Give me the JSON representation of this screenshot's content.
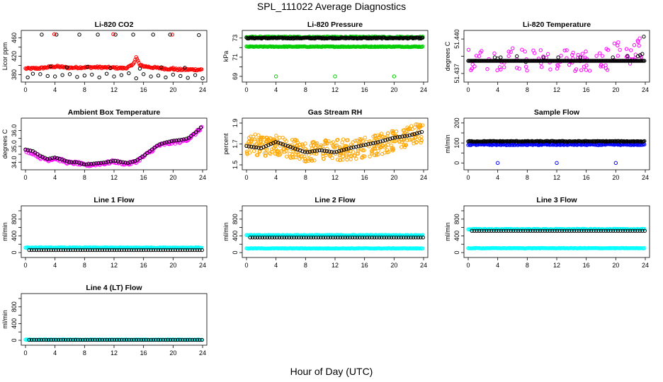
{
  "page": {
    "title": "SPL_111022  Average Diagnostics",
    "xlabel": "Hour of Day (UTC)"
  },
  "colors": {
    "black": "#000000",
    "red": "#ff0000",
    "green": "#00cc00",
    "magenta": "#ff00ff",
    "orange": "#ffa500",
    "blue": "#0000ff",
    "cyan": "#00ffff"
  },
  "chart_data": [
    {
      "type": "scatter",
      "title": "Li-820 CO2",
      "ylabel": "Licor ppm",
      "xlim": [
        0,
        24
      ],
      "ylim": [
        370,
        470
      ],
      "xticks": [
        "0",
        "4",
        "8",
        "12",
        "16",
        "20",
        "24"
      ],
      "yticks": [
        380,
        400,
        420,
        440,
        460
      ],
      "ytick_labels": [
        "380",
        "",
        "420",
        "",
        "460"
      ],
      "series": [
        {
          "color": "red",
          "kind": "dense",
          "y": [
            [
              0,
              393
            ],
            [
              2,
              394
            ],
            [
              4,
              398
            ],
            [
              6,
              395
            ],
            [
              8,
              396
            ],
            [
              10,
              396
            ],
            [
              12,
              395
            ],
            [
              13.5,
              394
            ],
            [
              14.5,
              400
            ],
            [
              15,
              418
            ],
            [
              15.5,
              400
            ],
            [
              17,
              396
            ],
            [
              19,
              393
            ],
            [
              21,
              391
            ],
            [
              23,
              391
            ],
            [
              24,
              391
            ]
          ],
          "spread": 2
        },
        {
          "color": "black",
          "kind": "points",
          "x": [
            0.3,
            1,
            2,
            3,
            4,
            5,
            6,
            7,
            8,
            9,
            10,
            11,
            12,
            13,
            14,
            15,
            16,
            17,
            18,
            19,
            20,
            21,
            22,
            23,
            24,
            2.2,
            4.2,
            7.3,
            9.8,
            12.2,
            14.6,
            17.3,
            19.6,
            23.5,
            3.4,
            5.6,
            8.4,
            11.5,
            15.5,
            18.4,
            21.6
          ],
          "y": [
            374,
            382,
            381,
            377,
            376,
            379,
            381,
            375,
            378,
            380,
            374,
            382,
            376,
            379,
            383,
            372,
            381,
            376,
            378,
            374,
            380,
            377,
            373,
            379,
            372,
            467,
            467,
            467,
            467,
            467,
            467,
            467,
            467,
            466,
            398,
            396,
            397,
            394,
            393,
            396,
            395
          ]
        },
        {
          "color": "red",
          "kind": "points",
          "x": [
            3.9,
            11.9,
            19.9,
            4,
            12,
            20
          ],
          "y": [
            468,
            468,
            467,
            396,
            396,
            395
          ]
        }
      ]
    },
    {
      "type": "scatter",
      "title": "Li-820 Pressure",
      "ylabel": "kPa",
      "xlim": [
        0,
        24
      ],
      "ylim": [
        68.7,
        73.5
      ],
      "xticks": [
        "0",
        "4",
        "8",
        "12",
        "16",
        "20",
        "24"
      ],
      "yticks": [
        69,
        70,
        71,
        72,
        73
      ],
      "ytick_labels": [
        "69",
        "",
        "71",
        "",
        "73"
      ],
      "series": [
        {
          "color": "green",
          "kind": "dense",
          "y": [
            [
              0,
              73.1
            ],
            [
              24,
              73.1
            ]
          ],
          "spread": 0.06
        },
        {
          "color": "black",
          "kind": "dense",
          "y": [
            [
              0,
              73.0
            ],
            [
              24,
              73.0
            ]
          ],
          "spread": 0.06
        },
        {
          "color": "green",
          "kind": "dense",
          "y": [
            [
              0,
              72.1
            ],
            [
              24,
              72.1
            ]
          ],
          "spread": 0.04
        },
        {
          "color": "green",
          "kind": "points",
          "x": [
            4,
            12,
            20
          ],
          "y": [
            69,
            69,
            69
          ]
        }
      ]
    },
    {
      "type": "scatter",
      "title": "Li-820 Temperature",
      "ylabel": "degrees C",
      "xlim": [
        0,
        24
      ],
      "ylim": [
        51.4365,
        51.4405
      ],
      "xticks": [
        "0",
        "4",
        "8",
        "12",
        "16",
        "20",
        "24"
      ],
      "yticks": [
        51.437,
        51.4385,
        51.44
      ],
      "ytick_labels": [
        "51.437",
        "",
        "51.440"
      ],
      "series": [
        {
          "color": "magenta",
          "kind": "scatter",
          "band": [
            51.4372,
            51.4392
          ],
          "n": 110
        },
        {
          "color": "black",
          "kind": "dense",
          "y": [
            [
              0,
              51.4381
            ],
            [
              24,
              51.4381
            ]
          ],
          "spread": 0
        },
        {
          "color": "black",
          "kind": "points",
          "x": [
            3.6,
            4,
            4.4,
            6.6,
            7.8,
            10.2,
            12.2,
            15.2,
            19.6,
            21.6,
            23,
            23.3,
            23.6,
            23.8
          ],
          "y": [
            51.4384,
            51.4383,
            51.4384,
            51.4385,
            51.438,
            51.4384,
            51.4384,
            51.4384,
            51.4384,
            51.4385,
            51.4385,
            51.4386,
            51.4387,
            51.4402
          ]
        }
      ]
    },
    {
      "type": "scatter",
      "title": "Ambient Box Temperature",
      "ylabel": "degrees C",
      "xlim": [
        0,
        24
      ],
      "ylim": [
        33.7,
        36.6
      ],
      "xticks": [
        "0",
        "4",
        "8",
        "12",
        "16",
        "20",
        "24"
      ],
      "yticks": [
        34.0,
        34.5,
        35.0,
        35.5,
        36.0
      ],
      "ytick_labels": [
        "34.0",
        "",
        "35.0",
        "",
        "36.0"
      ],
      "series": [
        {
          "color": "magenta",
          "kind": "dense",
          "y": [
            [
              0,
              34.7
            ],
            [
              1,
              34.6
            ],
            [
              2,
              34.3
            ],
            [
              3,
              34.15
            ],
            [
              4,
              34.25
            ],
            [
              5,
              34.1
            ],
            [
              6,
              33.95
            ],
            [
              7,
              33.95
            ],
            [
              8,
              33.8
            ],
            [
              9,
              33.85
            ],
            [
              10,
              33.9
            ],
            [
              11,
              33.95
            ],
            [
              12,
              34.05
            ],
            [
              13,
              33.95
            ],
            [
              14,
              33.9
            ],
            [
              15,
              34.05
            ],
            [
              16,
              34.35
            ],
            [
              17,
              34.7
            ],
            [
              18,
              35.05
            ],
            [
              19,
              35.15
            ],
            [
              20,
              35.25
            ],
            [
              21,
              35.3
            ],
            [
              22,
              35.45
            ],
            [
              23,
              35.8
            ],
            [
              24,
              36.25
            ]
          ],
          "spread": 0.1
        },
        {
          "color": "black",
          "kind": "trend",
          "y": [
            [
              0,
              34.8
            ],
            [
              1,
              34.7
            ],
            [
              2,
              34.4
            ],
            [
              3,
              34.2
            ],
            [
              4,
              34.3
            ],
            [
              5,
              34.15
            ],
            [
              6,
              34.0
            ],
            [
              7,
              34.0
            ],
            [
              8,
              33.85
            ],
            [
              9,
              33.9
            ],
            [
              10,
              33.95
            ],
            [
              11,
              34.0
            ],
            [
              12,
              34.1
            ],
            [
              13,
              34.0
            ],
            [
              14,
              33.95
            ],
            [
              15,
              34.1
            ],
            [
              16,
              34.4
            ],
            [
              17,
              34.75
            ],
            [
              18,
              35.1
            ],
            [
              19,
              35.25
            ],
            [
              20,
              35.35
            ],
            [
              21,
              35.4
            ],
            [
              22,
              35.5
            ],
            [
              23,
              35.85
            ],
            [
              24,
              36.3
            ]
          ]
        }
      ]
    },
    {
      "type": "scatter",
      "title": "Gas Stream RH",
      "ylabel": "percent",
      "xlim": [
        0,
        24
      ],
      "ylim": [
        1.48,
        1.92
      ],
      "xticks": [
        "0",
        "4",
        "8",
        "12",
        "16",
        "20",
        "24"
      ],
      "yticks": [
        1.5,
        1.6,
        1.7,
        1.8,
        1.9
      ],
      "ytick_labels": [
        "1.5",
        "",
        "1.7",
        "",
        "1.9"
      ],
      "series": [
        {
          "color": "orange",
          "kind": "cloud",
          "y": [
            [
              0,
              1.7
            ],
            [
              4,
              1.68
            ],
            [
              8,
              1.63
            ],
            [
              12,
              1.64
            ],
            [
              16,
              1.66
            ],
            [
              20,
              1.73
            ],
            [
              24,
              1.82
            ]
          ],
          "spread": 0.1,
          "n": 420
        },
        {
          "color": "black",
          "kind": "trend",
          "y": [
            [
              0,
              1.68
            ],
            [
              2,
              1.66
            ],
            [
              4,
              1.72
            ],
            [
              6,
              1.67
            ],
            [
              8,
              1.62
            ],
            [
              10,
              1.64
            ],
            [
              12,
              1.62
            ],
            [
              14,
              1.66
            ],
            [
              16,
              1.69
            ],
            [
              18,
              1.72
            ],
            [
              20,
              1.76
            ],
            [
              22,
              1.78
            ],
            [
              24,
              1.82
            ]
          ]
        }
      ]
    },
    {
      "type": "scatter",
      "title": "Sample Flow",
      "ylabel": "ml/min",
      "xlim": [
        0,
        24
      ],
      "ylim": [
        -20,
        210
      ],
      "xticks": [
        "0",
        "4",
        "8",
        "12",
        "16",
        "20",
        "24"
      ],
      "yticks": [
        0,
        50,
        100,
        150,
        200
      ],
      "ytick_labels": [
        "0",
        "",
        "100",
        "",
        "200"
      ],
      "series": [
        {
          "color": "blue",
          "kind": "dense",
          "y": [
            [
              0,
              92
            ],
            [
              24,
              92
            ]
          ],
          "spread": 3
        },
        {
          "color": "black",
          "kind": "dense",
          "y": [
            [
              0,
              108
            ],
            [
              24,
              108
            ]
          ],
          "spread": 2
        },
        {
          "color": "blue",
          "kind": "points",
          "x": [
            4,
            12,
            20
          ],
          "y": [
            0,
            0,
            0
          ]
        }
      ]
    },
    {
      "type": "scatter",
      "title": "Line 1 Flow",
      "ylabel": "ml/min",
      "xlim": [
        0,
        24
      ],
      "ylim": [
        -50,
        1050
      ],
      "xticks": [
        "0",
        "4",
        "8",
        "12",
        "16",
        "20",
        "24"
      ],
      "yticks": [
        0,
        200,
        400,
        600,
        800,
        1000
      ],
      "ytick_labels": [
        "0",
        "",
        "400",
        "",
        "800",
        ""
      ],
      "series": [
        {
          "color": "cyan",
          "kind": "dense",
          "y": [
            [
              0,
              118
            ],
            [
              24,
              118
            ]
          ],
          "spread": 8
        },
        {
          "color": "black",
          "kind": "trend",
          "y": [
            [
              0.5,
              60
            ],
            [
              24,
              60
            ]
          ]
        }
      ]
    },
    {
      "type": "scatter",
      "title": "Line 2 Flow",
      "ylabel": "ml/min",
      "xlim": [
        0,
        24
      ],
      "ylim": [
        -50,
        1050
      ],
      "xticks": [
        "0",
        "4",
        "8",
        "12",
        "16",
        "20",
        "24"
      ],
      "yticks": [
        0,
        200,
        400,
        600,
        800,
        1000
      ],
      "ytick_labels": [
        "0",
        "",
        "400",
        "",
        "800",
        ""
      ],
      "series": [
        {
          "color": "cyan",
          "kind": "dense",
          "y": [
            [
              0,
              415
            ],
            [
              24,
              415
            ]
          ],
          "spread": 8
        },
        {
          "color": "cyan",
          "kind": "dense",
          "y": [
            [
              0,
              100
            ],
            [
              24,
              100
            ]
          ],
          "spread": 6
        },
        {
          "color": "black",
          "kind": "trend",
          "y": [
            [
              0.5,
              360
            ],
            [
              24,
              360
            ]
          ]
        }
      ]
    },
    {
      "type": "scatter",
      "title": "Line 3 Flow",
      "ylabel": "ml/min",
      "xlim": [
        0,
        24
      ],
      "ylim": [
        -50,
        1050
      ],
      "xticks": [
        "0",
        "4",
        "8",
        "12",
        "16",
        "20",
        "24"
      ],
      "yticks": [
        0,
        200,
        400,
        600,
        800,
        1000
      ],
      "ytick_labels": [
        "0",
        "",
        "400",
        "",
        "800",
        ""
      ],
      "series": [
        {
          "color": "cyan",
          "kind": "dense",
          "y": [
            [
              0,
              560
            ],
            [
              24,
              560
            ]
          ],
          "spread": 8
        },
        {
          "color": "cyan",
          "kind": "dense",
          "y": [
            [
              0,
              105
            ],
            [
              24,
              105
            ]
          ],
          "spread": 6
        },
        {
          "color": "black",
          "kind": "trend",
          "y": [
            [
              0.5,
              520
            ],
            [
              24,
              520
            ]
          ]
        }
      ]
    },
    {
      "type": "scatter",
      "title": "Line 4 (LT) Flow",
      "ylabel": "ml/min",
      "xlim": [
        0,
        24
      ],
      "ylim": [
        -50,
        1050
      ],
      "xticks": [
        "0",
        "4",
        "8",
        "12",
        "16",
        "20",
        "24"
      ],
      "yticks": [
        0,
        200,
        400,
        600,
        800,
        1000
      ],
      "ytick_labels": [
        "0",
        "",
        "400",
        "",
        "800",
        ""
      ],
      "series": [
        {
          "color": "cyan",
          "kind": "dense",
          "y": [
            [
              0,
              15
            ],
            [
              24,
              15
            ]
          ],
          "spread": 6
        },
        {
          "color": "black",
          "kind": "trend",
          "y": [
            [
              0.5,
              10
            ],
            [
              24,
              10
            ]
          ]
        }
      ]
    }
  ]
}
